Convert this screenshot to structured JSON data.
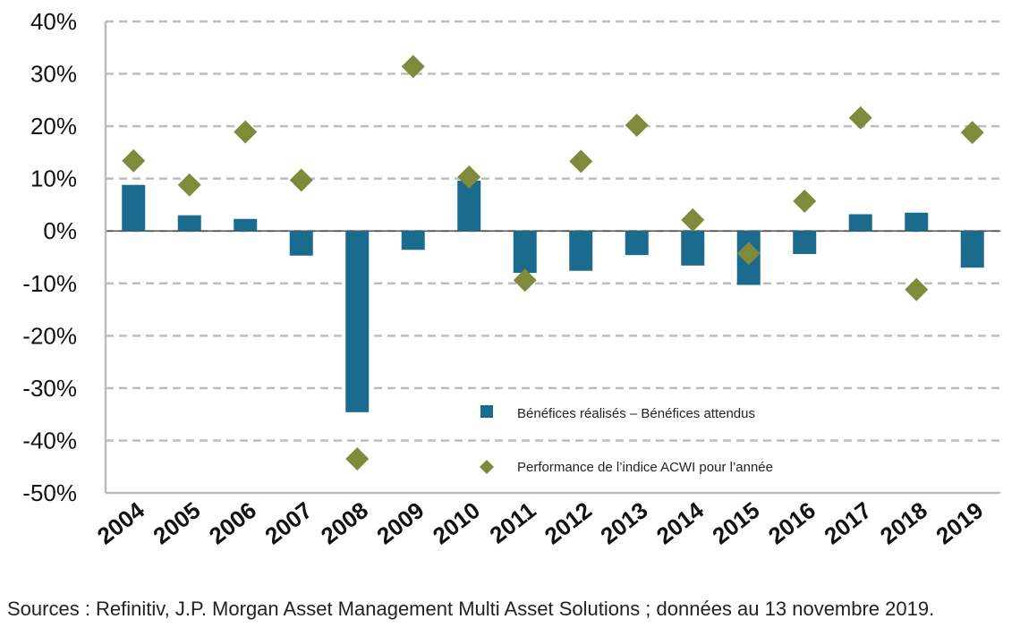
{
  "chart_data": {
    "type": "bar",
    "categories": [
      "2004",
      "2005",
      "2006",
      "2007",
      "2008",
      "2009",
      "2010",
      "2011",
      "2012",
      "2013",
      "2014",
      "2015",
      "2016",
      "2017",
      "2018",
      "2019"
    ],
    "series": [
      {
        "name": "Bénéfices réalisés – Bénéfices attendus",
        "kind": "bar",
        "color": "#1a6b8e",
        "values": [
          8.8,
          3.0,
          2.3,
          -4.7,
          -34.6,
          -3.6,
          9.6,
          -8.0,
          -7.6,
          -4.6,
          -6.6,
          -10.3,
          -4.4,
          3.2,
          3.5,
          -7.0
        ]
      },
      {
        "name": "Performance de l’indice ACWI pour l’année",
        "kind": "scatter",
        "marker": "diamond",
        "color": "#7f8b3a",
        "values": [
          13.4,
          8.8,
          18.9,
          9.7,
          -43.5,
          31.4,
          10.3,
          -9.4,
          13.3,
          20.2,
          2.1,
          -4.3,
          5.7,
          21.6,
          -11.2,
          18.8
        ]
      }
    ],
    "yticks": [
      "40%",
      "30%",
      "20%",
      "10%",
      "0%",
      "-10%",
      "-20%",
      "-30%",
      "-40%",
      "-50%"
    ],
    "ylim": [
      -50,
      40
    ],
    "grid": "horizontal dashed",
    "legend_position": "lower-right inside plot",
    "title": "",
    "xlabel": "",
    "ylabel": ""
  },
  "footer": {
    "source": "Sources : Refinitiv, J.P. Morgan Asset Management Multi Asset Solutions ; données au 13 novembre 2019."
  }
}
